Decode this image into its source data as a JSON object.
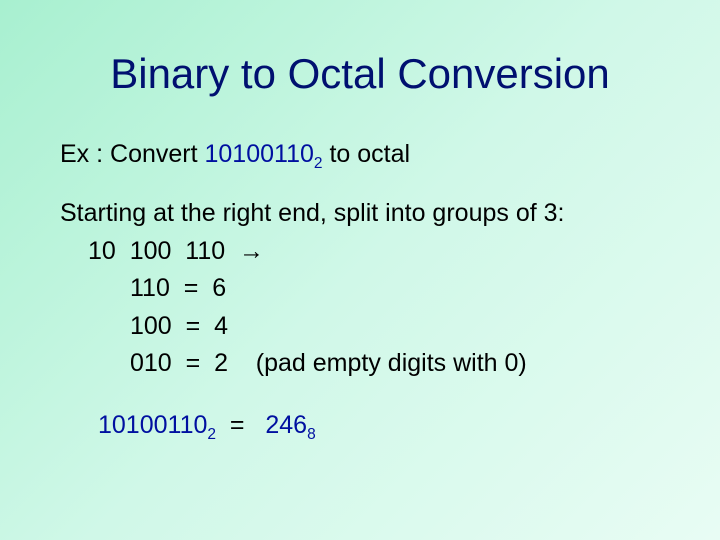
{
  "title": "Binary to Octal Conversion",
  "example": {
    "prefix": "Ex :   Convert  ",
    "binary_value": "10100110",
    "binary_sub": "2",
    "suffix": " to octal"
  },
  "explain": "Starting at the right end, split into groups of 3:",
  "grouped": "10  100  110  →",
  "conversions": [
    {
      "bits": "110",
      "eq": "  =  ",
      "digit": "6",
      "note": ""
    },
    {
      "bits": "100",
      "eq": "  =  ",
      "digit": "4",
      "note": ""
    },
    {
      "bits": "010",
      "eq": "  =  ",
      "digit": "2",
      "note": "    (pad empty digits with 0)"
    }
  ],
  "result": {
    "binary_value": "10100110",
    "binary_sub": "2",
    "eq": "  =   ",
    "octal_value": "246",
    "octal_sub": "8"
  },
  "colors": {
    "title_color": "#001070",
    "accent_color": "#0010a0",
    "background_start": "#a8f0d0",
    "background_end": "#e8fcf4",
    "text_color": "#000000"
  },
  "typography": {
    "title_font": "Comic Sans MS",
    "body_font": "Arial",
    "title_size_pt": 32,
    "body_size_pt": 19
  }
}
